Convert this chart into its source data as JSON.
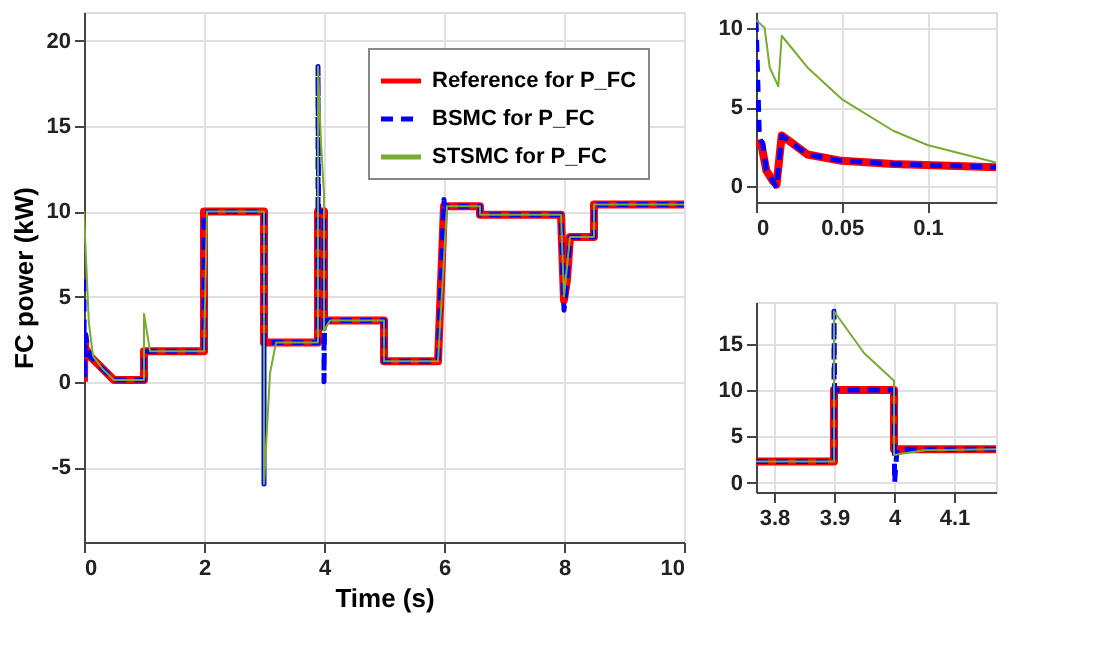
{
  "chart_data": [
    {
      "type": "line",
      "xlabel": "Time (s)",
      "ylabel": "FC power (kW)",
      "xlim": [
        0,
        10
      ],
      "ylim": [
        -9.4,
        21.7
      ],
      "xticks": [
        0,
        2,
        4,
        6,
        8,
        10
      ],
      "yticks": [
        -5,
        0,
        5,
        10,
        15,
        20
      ],
      "grid": true,
      "legend": "top right",
      "marker": "none",
      "series": [
        {
          "name": "Reference for P_FC",
          "color": "#ff0000",
          "line_style": "solid",
          "x": [
            0,
            0.01,
            0.02,
            0.1,
            0.3,
            0.5,
            1.0,
            1.0,
            2.0,
            2.0,
            3.0,
            3.0,
            3.9,
            3.9,
            4.0,
            4.0,
            5.0,
            5.0,
            5.9,
            6.0,
            6.6,
            6.6,
            7.95,
            8.0,
            8.05,
            8.1,
            8.5,
            8.5,
            10
          ],
          "values": [
            0,
            2.7,
            2.0,
            1.5,
            0.8,
            0.1,
            0.1,
            1.8,
            1.8,
            10,
            10,
            2.3,
            2.3,
            10,
            10,
            3.6,
            3.6,
            1.2,
            1.2,
            10.3,
            10.3,
            9.8,
            9.8,
            4.8,
            6.0,
            8.5,
            8.5,
            10.4,
            10.4
          ]
        },
        {
          "name": "BSMC for P_FC",
          "color": "#0000ff",
          "line_style": "dashed",
          "x": [
            0,
            0.002,
            0.01,
            0.02,
            0.1,
            0.3,
            0.5,
            1.0,
            1.0,
            2.0,
            2.0,
            3.0,
            3.0,
            3.0,
            3.9,
            3.9,
            3.91,
            4.0,
            4.0,
            4.01,
            5.0,
            5.0,
            5.9,
            6.0,
            6.0,
            6.05,
            6.6,
            6.6,
            7.95,
            8.0,
            8.05,
            8.1,
            8.5,
            8.5,
            10
          ],
          "values": [
            6,
            2.7,
            0.2,
            2.8,
            1.5,
            0.8,
            0.1,
            0.1,
            1.8,
            1.8,
            10,
            10,
            -6,
            2.3,
            2.3,
            18.5,
            10,
            10,
            0,
            3.6,
            3.6,
            1.2,
            1.2,
            10.7,
            10.4,
            10.3,
            10.3,
            9.8,
            9.8,
            4.2,
            6.0,
            8.5,
            8.5,
            10.4,
            10.4
          ]
        },
        {
          "name": "STSMC for P_FC",
          "color": "#77ac30",
          "line_style": "solid",
          "x": [
            0,
            0.03,
            0.08,
            0.15,
            0.3,
            0.5,
            1.0,
            1.0,
            1.1,
            2.0,
            2.05,
            3.0,
            3.0,
            3.1,
            3.2,
            3.9,
            3.9,
            3.95,
            4.0,
            4.0,
            4.1,
            5.0,
            5.0,
            5.9,
            6.05,
            6.6,
            6.6,
            7.95,
            8.0,
            8.1,
            8.5,
            8.5,
            10
          ],
          "values": [
            10,
            7.5,
            3.5,
            1.5,
            0.8,
            0.1,
            0.1,
            4,
            1.8,
            1.8,
            10,
            10,
            -6,
            0.5,
            2.3,
            2.3,
            18.5,
            14,
            11,
            3,
            3.6,
            3.6,
            1.2,
            1.2,
            10.3,
            10.3,
            9.8,
            9.8,
            5,
            8.5,
            8.5,
            10.4,
            10.4
          ]
        }
      ]
    },
    {
      "type": "line",
      "xlim": [
        0,
        0.14
      ],
      "ylim": [
        -1,
        11
      ],
      "xticks": [
        0,
        0.05,
        0.1
      ],
      "yticks": [
        0,
        5,
        10
      ],
      "grid": true,
      "marker": "none",
      "series": [
        {
          "color": "#ff0000",
          "line_style": "solid",
          "x": [
            0,
            0.003,
            0.006,
            0.01,
            0.012,
            0.015,
            0.02,
            0.03,
            0.05,
            0.08,
            0.14
          ],
          "values": [
            2.7,
            2.7,
            1.0,
            0.3,
            0.1,
            3.2,
            2.8,
            2.0,
            1.6,
            1.4,
            1.2
          ]
        },
        {
          "color": "#0000ff",
          "line_style": "dashed",
          "x": [
            0,
            0.002,
            0.004,
            0.006,
            0.01,
            0.012,
            0.015,
            0.02,
            0.03,
            0.05,
            0.08,
            0.14
          ],
          "values": [
            10.5,
            3,
            2.7,
            1.0,
            0.3,
            -0.1,
            3.2,
            2.8,
            2.0,
            1.6,
            1.4,
            1.2
          ]
        },
        {
          "color": "#77ac30",
          "line_style": "solid",
          "x": [
            0,
            0.005,
            0.008,
            0.013,
            0.015,
            0.03,
            0.05,
            0.08,
            0.1,
            0.14
          ],
          "values": [
            10.5,
            10,
            7.5,
            6.3,
            9.5,
            7.5,
            5.5,
            3.5,
            2.6,
            1.5
          ]
        }
      ]
    },
    {
      "type": "line",
      "xlim": [
        3.77,
        4.17
      ],
      "ylim": [
        -1,
        19.5
      ],
      "xticks": [
        3.8,
        3.9,
        4,
        4.1
      ],
      "yticks": [
        0,
        5,
        10,
        15
      ],
      "grid": true,
      "marker": "none",
      "series": [
        {
          "color": "#ff0000",
          "line_style": "solid",
          "x": [
            3.77,
            3.9,
            3.9,
            4.0,
            4.0,
            4.17
          ],
          "values": [
            2.3,
            2.3,
            10,
            10,
            3.6,
            3.6
          ]
        },
        {
          "color": "#0000ff",
          "line_style": "dashed",
          "x": [
            3.77,
            3.9,
            3.9,
            3.901,
            4.0,
            4.0,
            4.001,
            4.005,
            4.17
          ],
          "values": [
            2.3,
            2.3,
            18.5,
            10,
            10,
            10,
            0,
            3.6,
            3.6
          ]
        },
        {
          "color": "#77ac30",
          "line_style": "solid",
          "x": [
            3.77,
            3.9,
            3.9,
            3.95,
            4.0,
            4.0,
            4.05,
            4.17
          ],
          "values": [
            2.3,
            2.3,
            18.5,
            14,
            11,
            3,
            3.5,
            3.6
          ]
        }
      ]
    }
  ]
}
